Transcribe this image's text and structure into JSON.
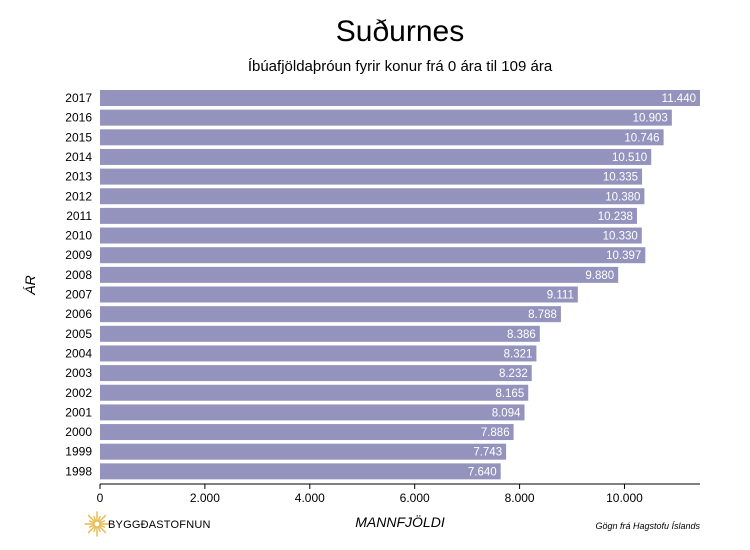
{
  "chart_data": {
    "type": "bar",
    "orientation": "horizontal",
    "title": "Suðurnes",
    "subtitle": "Íbúafjöldaþróun fyrir konur frá 0 ára til 109 ára",
    "xlabel": "MANNFJÖLDI",
    "ylabel": "ÁR",
    "categories": [
      "2017",
      "2016",
      "2015",
      "2014",
      "2013",
      "2012",
      "2011",
      "2010",
      "2009",
      "2008",
      "2007",
      "2006",
      "2005",
      "2004",
      "2003",
      "2002",
      "2001",
      "2000",
      "1999",
      "1998"
    ],
    "values": [
      11440,
      10903,
      10746,
      10510,
      10335,
      10380,
      10238,
      10330,
      10397,
      9880,
      9111,
      8788,
      8386,
      8321,
      8232,
      8165,
      8094,
      7886,
      7743,
      7640
    ],
    "value_labels": [
      "11.440",
      "10.903",
      "10.746",
      "10.510",
      "10.335",
      "10.380",
      "10.238",
      "10.330",
      "10.397",
      "9.880",
      "9.111",
      "8.788",
      "8.386",
      "8.321",
      "8.232",
      "8.165",
      "8.094",
      "7.886",
      "7.743",
      "7.640"
    ],
    "xlim": [
      0,
      11440
    ],
    "xticks": [
      0,
      2000,
      4000,
      6000,
      8000,
      10000
    ],
    "xtick_labels": [
      "0",
      "2.000",
      "4.000",
      "6.000",
      "8.000",
      "10.000"
    ],
    "bar_color": "#9393bd",
    "label_color": "#ffffff",
    "grid": false,
    "legend": "none"
  },
  "footer": {
    "logo_text": "BYGGÐASTOFNUN",
    "logo_color": "#e8b84a",
    "source": "Gögn frá Hagstofu Íslands"
  }
}
